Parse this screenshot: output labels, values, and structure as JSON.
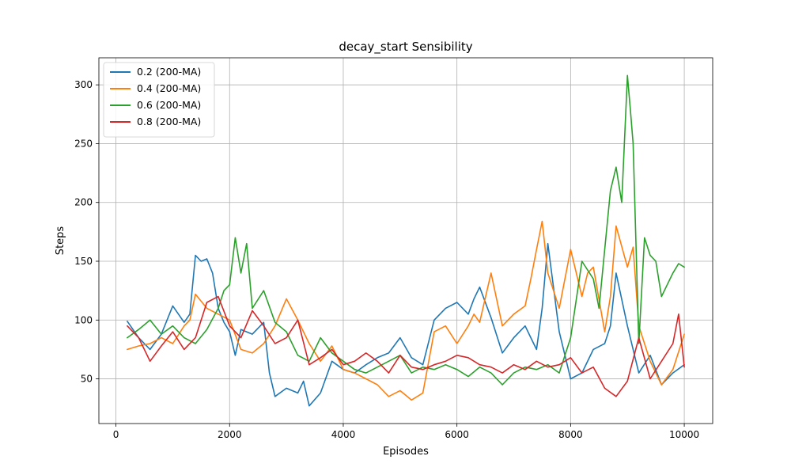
{
  "chart_data": {
    "type": "line",
    "title": "decay_start Sensibility",
    "xlabel": "Episodes",
    "ylabel": "Steps",
    "xlim": [
      -300,
      10500
    ],
    "ylim": [
      12,
      323
    ],
    "xticks": [
      0,
      2000,
      4000,
      6000,
      8000,
      10000
    ],
    "yticks": [
      50,
      100,
      150,
      200,
      250,
      300
    ],
    "grid": true,
    "legend_position": "top-left",
    "series": [
      {
        "name": "0.2 (200-MA)",
        "color": "#1f77b4",
        "x": [
          200,
          400,
          600,
          800,
          1000,
          1200,
          1300,
          1400,
          1500,
          1600,
          1700,
          1800,
          1900,
          2000,
          2100,
          2200,
          2400,
          2600,
          2700,
          2800,
          3000,
          3200,
          3300,
          3400,
          3600,
          3800,
          4000,
          4200,
          4400,
          4600,
          4800,
          5000,
          5200,
          5400,
          5600,
          5800,
          6000,
          6200,
          6300,
          6400,
          6600,
          6800,
          7000,
          7200,
          7300,
          7400,
          7500,
          7600,
          7800,
          8000,
          8200,
          8400,
          8600,
          8700,
          8800,
          9000,
          9200,
          9400,
          9600,
          9800,
          10000
        ],
        "values": [
          99,
          85,
          75,
          88,
          112,
          98,
          105,
          155,
          150,
          152,
          140,
          110,
          98,
          90,
          70,
          92,
          88,
          98,
          55,
          35,
          42,
          38,
          48,
          27,
          38,
          65,
          58,
          55,
          62,
          68,
          72,
          85,
          68,
          62,
          100,
          110,
          115,
          105,
          118,
          128,
          102,
          72,
          85,
          95,
          85,
          75,
          110,
          165,
          90,
          50,
          55,
          75,
          80,
          95,
          140,
          95,
          55,
          70,
          45,
          55,
          62
        ]
      },
      {
        "name": "0.4 (200-MA)",
        "color": "#ff7f0e",
        "x": [
          200,
          400,
          600,
          800,
          1000,
          1200,
          1300,
          1400,
          1600,
          1800,
          2000,
          2200,
          2400,
          2600,
          2800,
          3000,
          3200,
          3400,
          3600,
          3800,
          4000,
          4200,
          4400,
          4600,
          4800,
          5000,
          5200,
          5400,
          5600,
          5800,
          6000,
          6200,
          6300,
          6400,
          6600,
          6800,
          7000,
          7200,
          7300,
          7400,
          7500,
          7600,
          7800,
          8000,
          8200,
          8300,
          8400,
          8600,
          8700,
          8800,
          9000,
          9100,
          9200,
          9400,
          9600,
          9800,
          10000
        ],
        "values": [
          75,
          78,
          80,
          85,
          80,
          95,
          100,
          122,
          110,
          105,
          100,
          75,
          72,
          80,
          95,
          118,
          100,
          80,
          65,
          78,
          58,
          55,
          50,
          45,
          35,
          40,
          32,
          38,
          90,
          95,
          80,
          95,
          105,
          98,
          140,
          95,
          105,
          112,
          135,
          160,
          184,
          140,
          110,
          160,
          120,
          140,
          145,
          90,
          120,
          180,
          145,
          162,
          95,
          65,
          45,
          58,
          88
        ]
      },
      {
        "name": "0.6 (200-MA)",
        "color": "#2ca02c",
        "x": [
          200,
          400,
          600,
          800,
          1000,
          1200,
          1400,
          1600,
          1800,
          1900,
          2000,
          2100,
          2200,
          2300,
          2400,
          2600,
          2800,
          3000,
          3200,
          3400,
          3600,
          3800,
          4000,
          4200,
          4400,
          4600,
          4800,
          5000,
          5200,
          5400,
          5600,
          5800,
          6000,
          6200,
          6400,
          6600,
          6800,
          7000,
          7200,
          7400,
          7600,
          7800,
          8000,
          8200,
          8400,
          8500,
          8600,
          8700,
          8800,
          8900,
          9000,
          9050,
          9100,
          9200,
          9300,
          9400,
          9500,
          9600,
          9700,
          9800,
          9900,
          10000
        ],
        "values": [
          85,
          92,
          100,
          88,
          95,
          85,
          80,
          92,
          110,
          125,
          130,
          170,
          140,
          165,
          110,
          125,
          98,
          90,
          70,
          65,
          85,
          72,
          65,
          58,
          55,
          60,
          65,
          70,
          55,
          60,
          58,
          62,
          58,
          52,
          60,
          55,
          45,
          55,
          60,
          58,
          62,
          55,
          85,
          150,
          135,
          110,
          160,
          210,
          230,
          200,
          308,
          280,
          250,
          80,
          170,
          155,
          150,
          120,
          130,
          140,
          148,
          145
        ]
      },
      {
        "name": "0.8 (200-MA)",
        "color": "#d62728",
        "x": [
          200,
          400,
          600,
          800,
          1000,
          1200,
          1400,
          1600,
          1800,
          2000,
          2200,
          2400,
          2600,
          2800,
          3000,
          3200,
          3400,
          3600,
          3800,
          4000,
          4200,
          4400,
          4600,
          4800,
          5000,
          5200,
          5400,
          5600,
          5800,
          6000,
          6200,
          6400,
          6600,
          6800,
          7000,
          7200,
          7400,
          7600,
          7800,
          8000,
          8200,
          8400,
          8600,
          8800,
          9000,
          9200,
          9400,
          9600,
          9800,
          9900,
          10000
        ],
        "values": [
          95,
          85,
          65,
          78,
          90,
          75,
          85,
          115,
          120,
          95,
          85,
          108,
          95,
          80,
          85,
          100,
          62,
          68,
          75,
          62,
          65,
          72,
          65,
          55,
          70,
          60,
          58,
          62,
          65,
          70,
          68,
          62,
          60,
          55,
          62,
          58,
          65,
          60,
          62,
          68,
          55,
          60,
          42,
          35,
          48,
          85,
          50,
          65,
          80,
          105,
          60
        ]
      }
    ]
  }
}
